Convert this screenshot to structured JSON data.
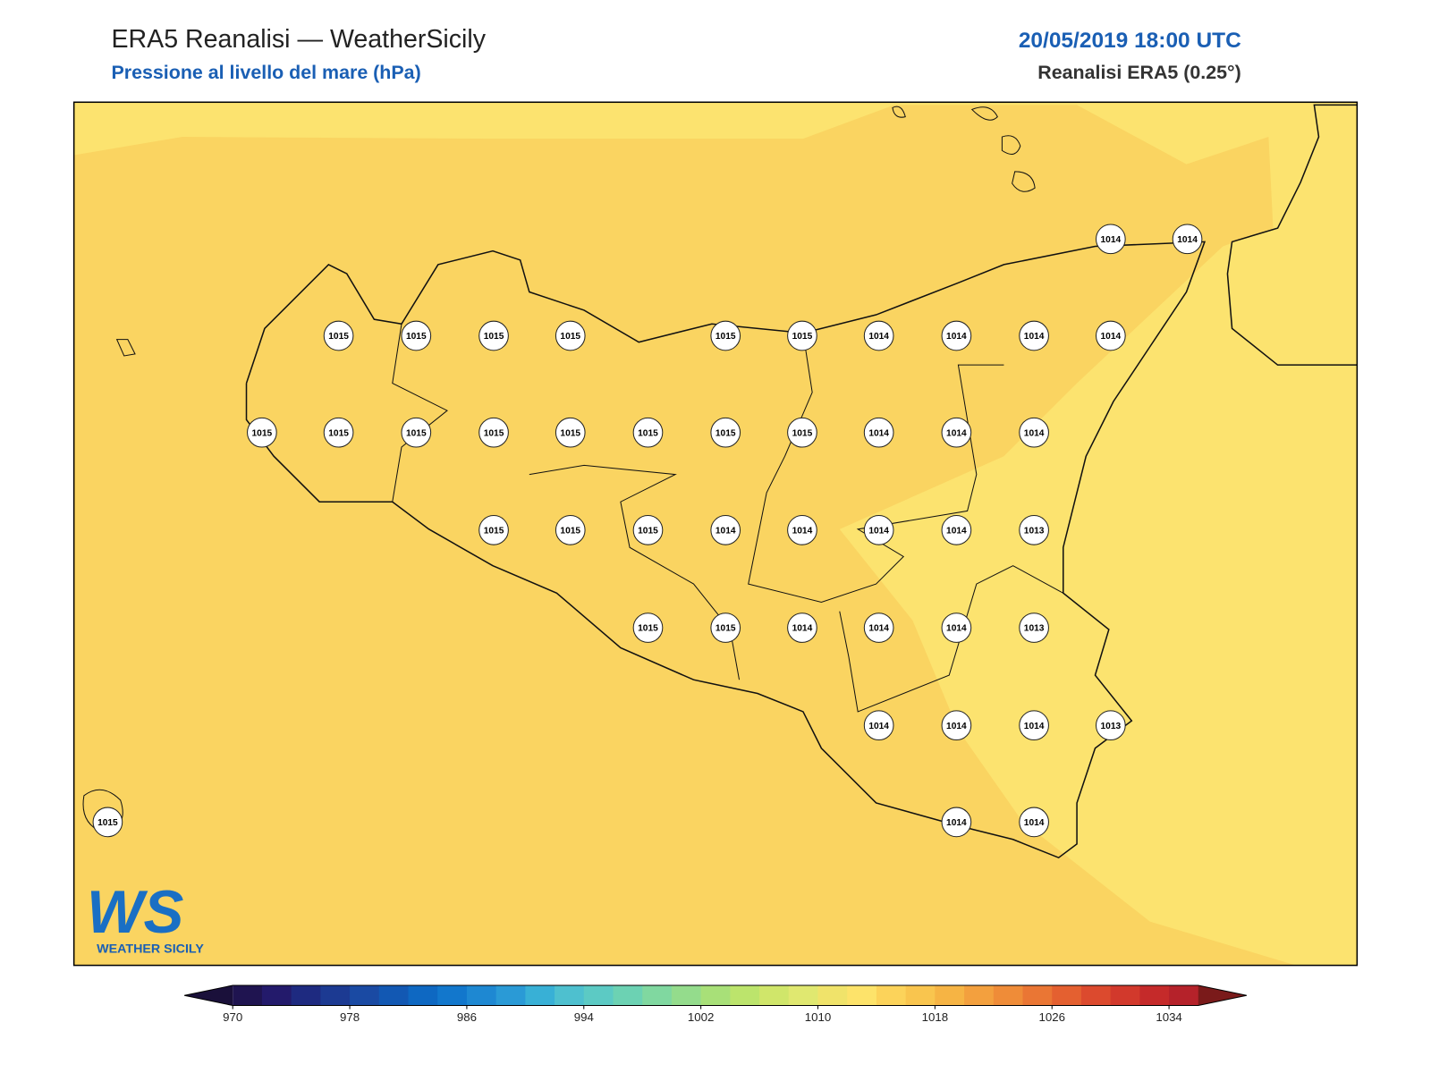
{
  "header": {
    "title": "ERA5 Reanalisi — WeatherSicily",
    "subtitle": "Pressione al livello del mare (hPa)",
    "date": "20/05/2019 18:00 UTC",
    "source": "Reanalisi ERA5 (0.25°)"
  },
  "stations": [
    1014,
    1014,
    1015,
    1015,
    1015,
    1015,
    1015,
    1015,
    1014,
    1014,
    1014,
    1014,
    1015,
    1015,
    1015,
    1015,
    1015,
    1015,
    1015,
    1015,
    1014,
    1014,
    1014,
    1015,
    1015,
    1015,
    1014,
    1014,
    1014,
    1014,
    1013,
    1015,
    1015,
    1014,
    1014,
    1014,
    1013,
    1014,
    1014,
    1014,
    1013,
    1015,
    1014,
    1014
  ],
  "colorbar": {
    "range": [
      970,
      1036
    ],
    "ticks": [
      970,
      978,
      986,
      994,
      1002,
      1010,
      1018,
      1026,
      1034
    ],
    "colors": [
      "#1f1450",
      "#231a6b",
      "#1e2a80",
      "#1c3a92",
      "#1a4aa3",
      "#1258b3",
      "#0e68c2",
      "#1277cc",
      "#1e88d2",
      "#2a9ad6",
      "#38b0d6",
      "#4ec0cf",
      "#5ccac4",
      "#6cd2b3",
      "#80d8a0",
      "#94dc8c",
      "#a8e078",
      "#bce46c",
      "#d0e66a",
      "#e0e870",
      "#f0e36a",
      "#fde36a",
      "#fcd35a",
      "#f9c54e",
      "#f6b444",
      "#f3a03e",
      "#ef8c38",
      "#ea7634",
      "#e46030",
      "#dc4a2e",
      "#d2392c",
      "#c52a2a",
      "#b5222a"
    ],
    "under": "#1a103a",
    "over": "#7a1a1a"
  },
  "logo": {
    "mark": "WS",
    "text": "WEATHER SICILY"
  }
}
